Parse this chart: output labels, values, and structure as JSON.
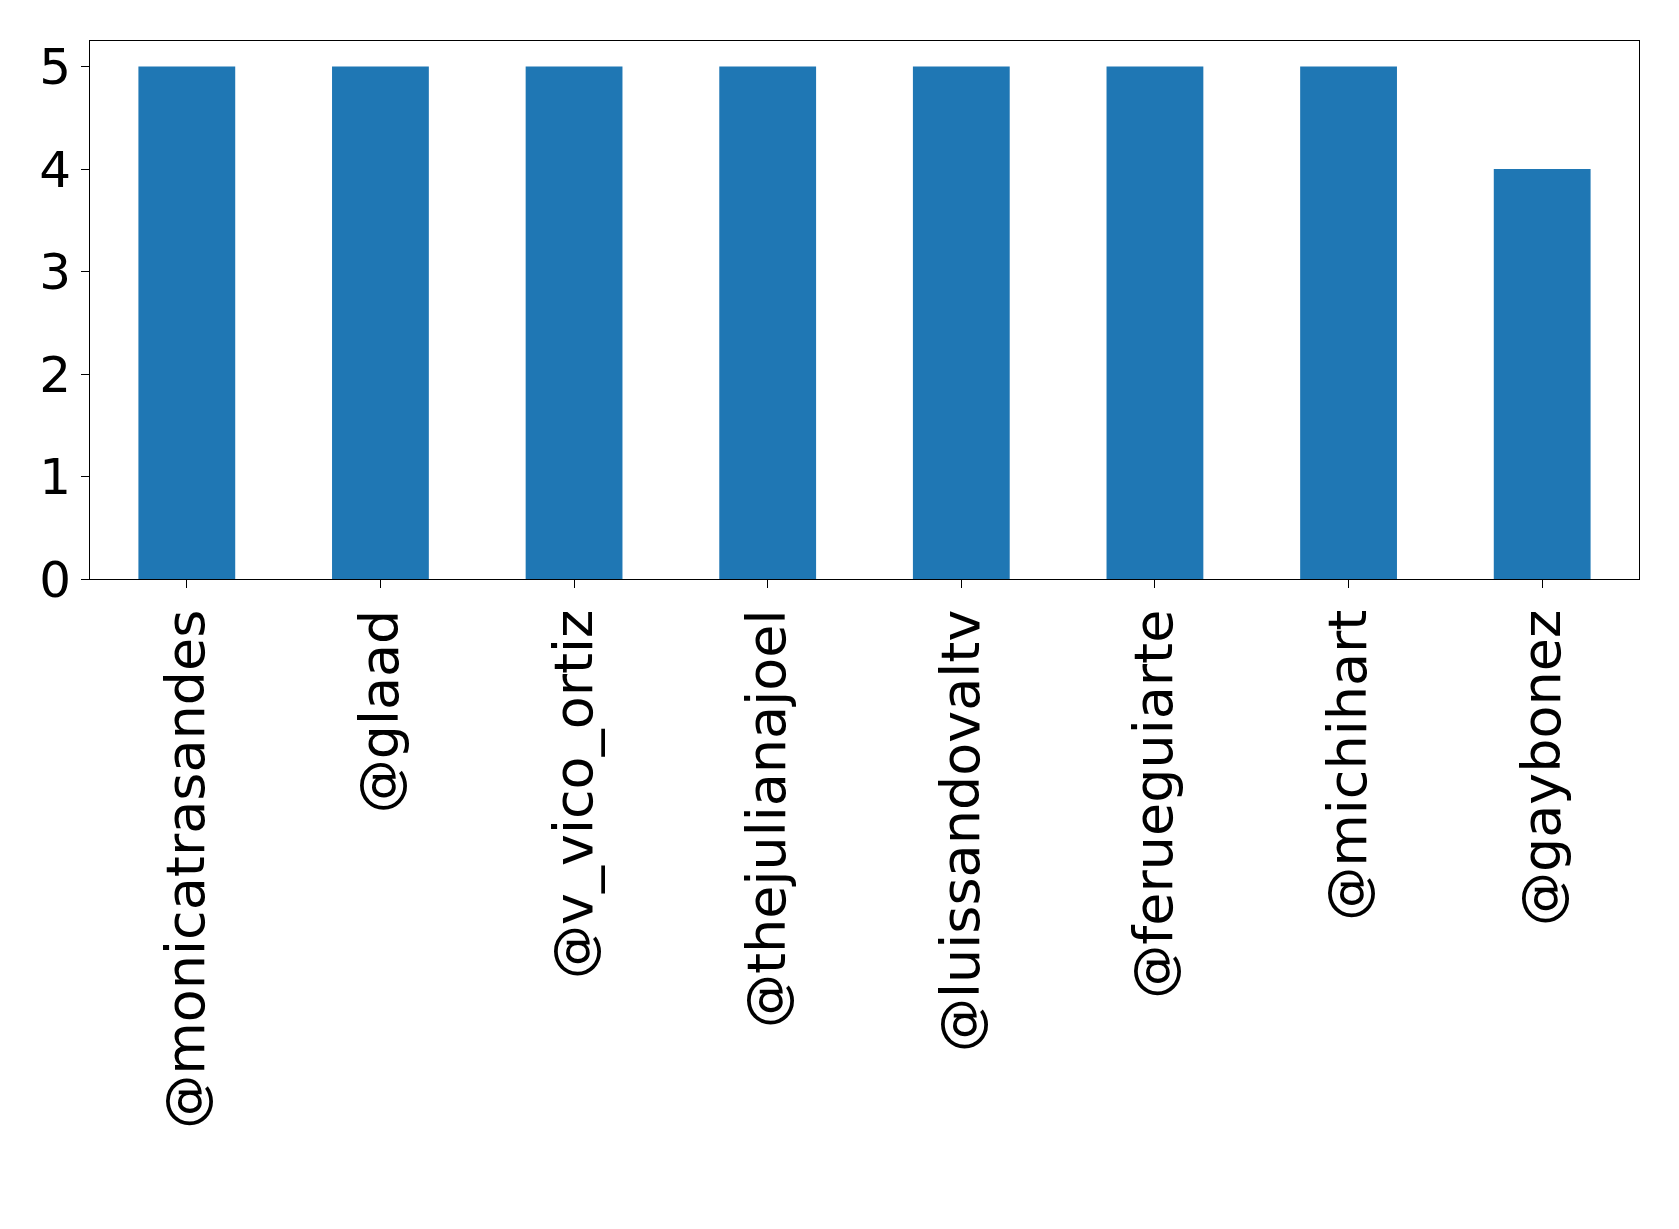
{
  "chart_data": {
    "type": "bar",
    "categories": [
      "@monicatrasandes",
      "@glaad",
      "@v_vico_ortiz",
      "@thejulianajoel",
      "@luissandovaltv",
      "@ferueguiarte",
      "@michihart",
      "@gaybonez"
    ],
    "values": [
      5,
      5,
      5,
      5,
      5,
      5,
      5,
      4
    ],
    "color": "#1f77b4",
    "ylim": [
      0,
      5.25
    ],
    "yticks": [
      0,
      1,
      2,
      3,
      4,
      5
    ]
  }
}
